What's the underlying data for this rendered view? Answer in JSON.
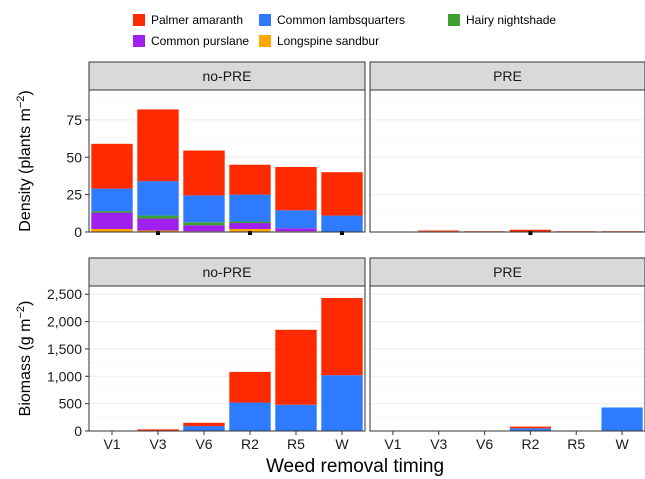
{
  "chart_data": {
    "type": "bar",
    "stacked": true,
    "facet_layout": "2 rows x 2 columns",
    "legend_position": "top",
    "grid": true,
    "colors": {
      "Palmer amaranth": "#ff2a00",
      "Common lambsquarters": "#2f7bff",
      "Hairy nightshade": "#3ca12f",
      "Common purslane": "#a020f0",
      "Longspine sandbur": "#ffa500"
    },
    "legend": [
      "Palmer amaranth",
      "Common lambsquarters",
      "Hairy nightshade",
      "Common purslane",
      "Longspine sandbur"
    ],
    "xlabel": "Weed removal timing",
    "categories": [
      "V1",
      "V3",
      "V6",
      "R2",
      "R5",
      "W"
    ],
    "rows": [
      {
        "ylabel": "Density (plants m",
        "ylabel_sup": "−2",
        "ylabel_close": ")",
        "ylim": [
          0,
          95
        ],
        "yticks": [
          0,
          25,
          50,
          75
        ],
        "ytick_labels": [
          "0",
          "25",
          "50",
          "75"
        ],
        "panels": [
          {
            "strip": "no-PRE",
            "series": [
              {
                "name": "Longspine sandbur",
                "values": [
                  2,
                  1,
                  0.5,
                  2,
                  0.5,
                  0
                ]
              },
              {
                "name": "Common purslane",
                "values": [
                  11,
                  8,
                  4,
                  4,
                  2,
                  0
                ]
              },
              {
                "name": "Hairy nightshade",
                "values": [
                  1,
                  2,
                  2,
                  1,
                  0,
                  0
                ]
              },
              {
                "name": "Common lambsquarters",
                "values": [
                  15,
                  23,
                  18,
                  18,
                  12,
                  11
                ]
              },
              {
                "name": "Palmer amaranth",
                "values": [
                  30,
                  48,
                  30,
                  20,
                  29,
                  29
                ]
              }
            ],
            "error_marks": [
              0,
              1,
              0,
              1,
              0,
              1
            ]
          },
          {
            "strip": "PRE",
            "series": [
              {
                "name": "Longspine sandbur",
                "values": [
                  0,
                  0.5,
                  0,
                  0,
                  0,
                  0
                ]
              },
              {
                "name": "Palmer amaranth",
                "values": [
                  0,
                  0.5,
                  0.5,
                  1.5,
                  0.5,
                  0.5
                ]
              }
            ],
            "error_marks": [
              0,
              0,
              0,
              1,
              0,
              0
            ]
          }
        ]
      },
      {
        "ylabel": "Biomass (g m",
        "ylabel_sup": "−2",
        "ylabel_close": ")",
        "ylim": [
          0,
          2650
        ],
        "yticks": [
          0,
          500,
          1000,
          1500,
          2000,
          2500
        ],
        "ytick_labels": [
          "0",
          "500",
          "1,000",
          "1,500",
          "2,000",
          "2,500"
        ],
        "panels": [
          {
            "strip": "no-PRE",
            "series": [
              {
                "name": "Common lambsquarters",
                "values": [
                  0,
                  10,
                  90,
                  520,
                  480,
                  1020
                ]
              },
              {
                "name": "Palmer amaranth",
                "values": [
                  0,
                  20,
                  60,
                  560,
                  1370,
                  1410
                ]
              }
            ]
          },
          {
            "strip": "PRE",
            "series": [
              {
                "name": "Common lambsquarters",
                "values": [
                  0,
                  0,
                  0,
                  50,
                  0,
                  430
                ]
              },
              {
                "name": "Palmer amaranth",
                "values": [
                  0,
                  0,
                  0,
                  30,
                  0,
                  0
                ]
              }
            ]
          }
        ]
      }
    ]
  }
}
